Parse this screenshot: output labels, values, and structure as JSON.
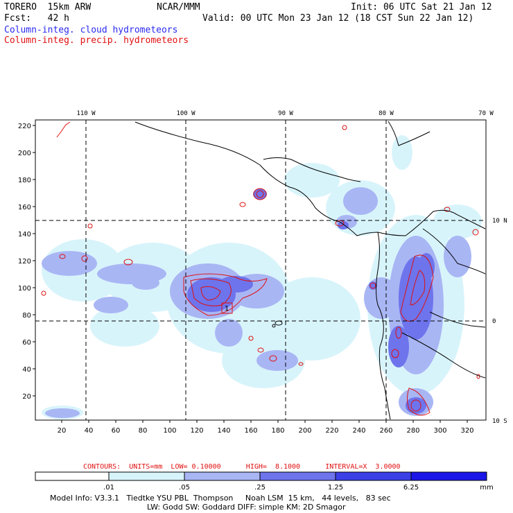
{
  "header": {
    "model": "TORERO  15km ARW",
    "org": "NCAR/MMM",
    "init": "Init: 06 UTC Sat 21 Jan 12",
    "fcst": "Fcst:   42 h",
    "valid": "Valid: 00 UTC Mon 23 Jan 12 (18 CST Sun 22 Jan 12)",
    "field1": "Column-integ. cloud hydrometeors",
    "field2": "Column-integ. precip. hydrometeors"
  },
  "map": {
    "lon_labels": [
      "110 W",
      "100 W",
      "90 W",
      "80 W",
      "70 W"
    ],
    "lat_labels": [
      "10 N",
      "0",
      "10 S"
    ],
    "x_ticks": [
      "20",
      "40",
      "60",
      "80",
      "100",
      "120",
      "140",
      "160",
      "180",
      "200",
      "220",
      "240",
      "260",
      "280",
      "300",
      "320"
    ],
    "y_ticks": [
      "20",
      "40",
      "60",
      "80",
      "100",
      "120",
      "140",
      "160",
      "180",
      "200",
      "220"
    ],
    "station_label": "1"
  },
  "contour_info": {
    "text": "CONTOURS:  UNITS=mm  LOW= 0.10000      HIGH=  8.1000      INTERVAL=X  3.0000"
  },
  "colorbar": {
    "values": [
      ".01",
      ".05",
      ".25",
      "1.25",
      "6.25"
    ],
    "unit": "mm",
    "colors": [
      "#ffffff",
      "#d8f4fb",
      "#a9b6f4",
      "#6d74ec",
      "#3b3fe6",
      "#1a16e8"
    ]
  },
  "model_info": {
    "line1": "Model Info: V3.3.1   Tiedtke YSU PBL  Thompson     Noah LSM  15 km,   44 levels,   83 sec",
    "line2": "LW: Godd SW: Goddard DIFF: simple KM: 2D Smagor"
  }
}
